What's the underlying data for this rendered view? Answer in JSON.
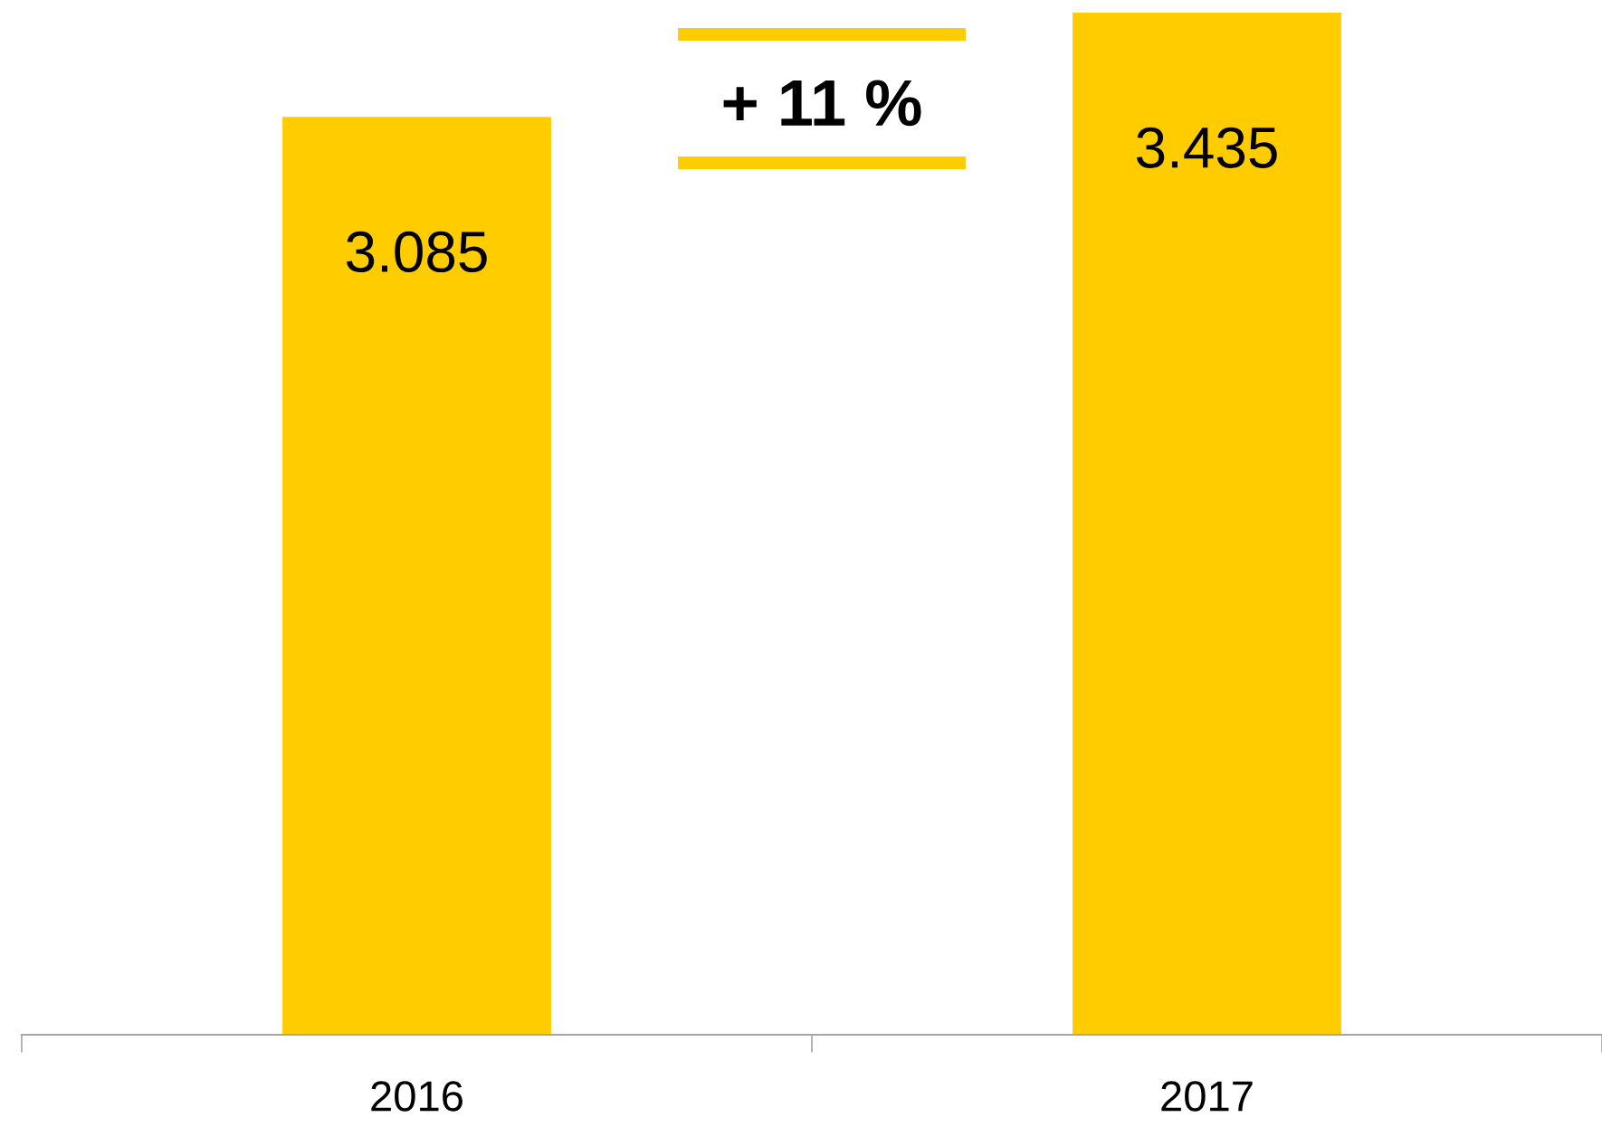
{
  "chart_data": {
    "type": "bar",
    "categories": [
      "2016",
      "2017"
    ],
    "values": [
      3.085,
      3.435
    ],
    "color": "#ffcc00",
    "data_labels": true,
    "annotations": [
      "+ 11 %"
    ],
    "grid": false,
    "legend": false
  }
}
